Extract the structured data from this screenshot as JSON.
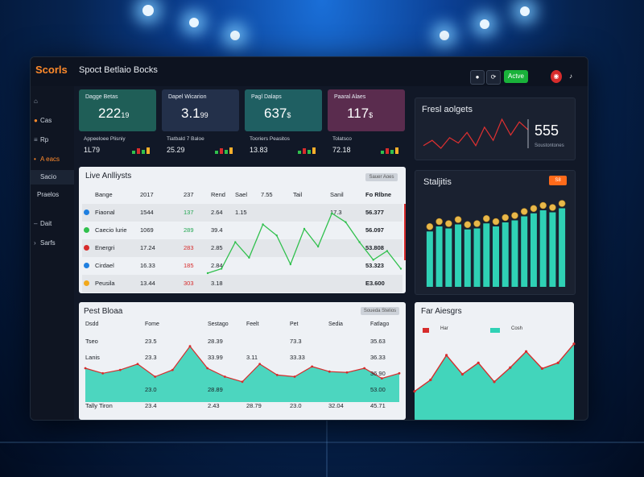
{
  "colors": {
    "accent": "#ff8a2b",
    "teal": "#2fd1b5",
    "green": "#30c04d",
    "red": "#d72c2c",
    "blue": "#1f7fe0"
  },
  "app": {
    "brand": "Scorls",
    "title": "Spoct Betlaio Bocks"
  },
  "toolbar": {
    "circle_icon": "circle-icon",
    "status_label": "Actve",
    "avatar_icon": "avatar-icon",
    "bell_icon": "bell-icon"
  },
  "sidebar": {
    "items": [
      {
        "label": "",
        "icon": "home-icon"
      },
      {
        "label": "Cas",
        "icon": "dot-icon"
      },
      {
        "label": "Rp",
        "icon": "list-icon"
      },
      {
        "label": "A eacs",
        "icon": "dot-icon",
        "active": true
      },
      {
        "label": "Sacio",
        "icon": ""
      },
      {
        "label": "Praelos",
        "icon": ""
      },
      {
        "label": "Dait",
        "icon": "dash-icon"
      },
      {
        "label": "Sarfs",
        "icon": "chevron-icon"
      }
    ]
  },
  "cards": [
    {
      "title": "Dagge Betas",
      "value": "222",
      "suffix": "19",
      "sub_label": "Appeeloee Plisniy",
      "sub_value": "1L79",
      "color": "#1f5e57"
    },
    {
      "title": "Dapel Wicarion",
      "value": "3.1",
      "suffix": "99",
      "sub_label": "Tiatbald 7 Baloe",
      "sub_value": "25.29",
      "color": "#23304a"
    },
    {
      "title": "Pagl Dalaps",
      "value": "637",
      "suffix": "$",
      "sub_label": "Tooriers Peasitos",
      "sub_value": "13.83",
      "color": "#1f5f62"
    },
    {
      "title": "Paaral Alaes",
      "value": "117",
      "suffix": "$",
      "sub_label": "Tolatsco",
      "sub_value": "72.18",
      "color": "#5a2c4e"
    }
  ],
  "fresh": {
    "title": "Fresl aolgets",
    "value": "555",
    "sub": "Soustontones"
  },
  "live": {
    "title": "Live Anlliysts",
    "button": "Sauer Aoes",
    "headers": [
      "Bange",
      "2017",
      "237",
      "Rend",
      "Sael",
      "7.55",
      "Tail",
      "Sanil",
      "Fo Rlbne"
    ],
    "rows": [
      {
        "name": "Bange",
        "a": "2017",
        "b": "237",
        "c": "Rend",
        "d": "Sael",
        "e": "7.55",
        "f": "Tail",
        "g": "Sanil",
        "h": "Fo Rlbne",
        "dot": ""
      },
      {
        "name": "Fiaonal",
        "a": "1544",
        "b": "137",
        "c": "2.64",
        "d": "1.15",
        "e": "",
        "f": "",
        "g": "17.3",
        "h": "56.377",
        "dot": "#1f7fe0"
      },
      {
        "name": "Caecio lurie",
        "a": "1069",
        "b": "289",
        "c": "39.4",
        "d": "",
        "e": "",
        "f": "",
        "g": "",
        "h": "56.097",
        "dot": "#30c04d"
      },
      {
        "name": "Energri",
        "a": "17.24",
        "b": "283",
        "c": "2.85",
        "d": "",
        "e": "",
        "f": "",
        "g": "",
        "h": "53.808",
        "dot": "#d72c2c"
      },
      {
        "name": "Cirdael",
        "a": "16.33",
        "b": "185",
        "c": "2.84",
        "d": "",
        "e": "",
        "f": "",
        "g": "",
        "h": "53.323",
        "dot": "#1f7fe0"
      },
      {
        "name": "Peusila",
        "a": "13.44",
        "b": "303",
        "c": "3.18",
        "d": "",
        "e": "",
        "f": "",
        "g": "",
        "h": "E3.600",
        "dot": "#f2a91c"
      }
    ]
  },
  "stats": {
    "title": "Staljitis",
    "badge": "S8"
  },
  "perf": {
    "title": "Pest Bloaa",
    "button": "Soueda Stelios",
    "headers": [
      "Dsdd",
      "Fome",
      "Sestago",
      "Feelt",
      "Pet",
      "Sedia",
      "Fatlago"
    ],
    "rows": [
      [
        "Tseo",
        "23.5",
        "28.39",
        "",
        "73.3",
        "",
        "35.63"
      ],
      [
        "Lanis",
        "23.3",
        "33.99",
        "3.11",
        "33.33",
        "",
        "36.33"
      ],
      [
        "",
        "",
        "",
        "",
        "",
        "",
        "36.90"
      ],
      [
        "",
        "23.0",
        "28.89",
        "",
        "",
        "",
        "53.00"
      ],
      [
        "Tally Tiron",
        "23.4",
        "2.43",
        "28.79",
        "23.0",
        "32.04",
        "45.71"
      ]
    ]
  },
  "far": {
    "title": "Far Aiesgrs",
    "legend": [
      {
        "label": "Har",
        "color": "#d72c2c"
      },
      {
        "label": "Cosh",
        "color": "#2fd1b5"
      }
    ]
  },
  "chart_data": [
    {
      "type": "line",
      "name": "fresh-mini",
      "values": [
        12,
        14,
        11,
        15,
        13,
        17,
        12,
        19,
        14,
        22,
        16,
        21,
        18
      ],
      "color": "#e03030"
    },
    {
      "type": "line",
      "name": "live-overlay",
      "values": [
        8,
        10,
        22,
        15,
        30,
        25,
        12,
        28,
        20,
        35,
        31,
        22,
        14,
        18,
        10
      ],
      "color": "#30c04d"
    },
    {
      "type": "bar",
      "name": "statistics",
      "values": [
        55,
        60,
        58,
        62,
        57,
        58,
        63,
        60,
        64,
        66,
        70,
        73,
        76,
        74,
        78
      ],
      "color": "#2fd1b5"
    },
    {
      "type": "area",
      "name": "pest",
      "values": [
        40,
        34,
        38,
        45,
        30,
        38,
        66,
        40,
        30,
        24,
        45,
        32,
        30,
        42,
        36,
        35,
        40,
        28,
        34
      ],
      "color": "#2fd1b5"
    },
    {
      "type": "area",
      "name": "far",
      "values": [
        30,
        42,
        68,
        48,
        60,
        40,
        55,
        72,
        54,
        60,
        80
      ],
      "color": "#2fd1b5"
    }
  ]
}
